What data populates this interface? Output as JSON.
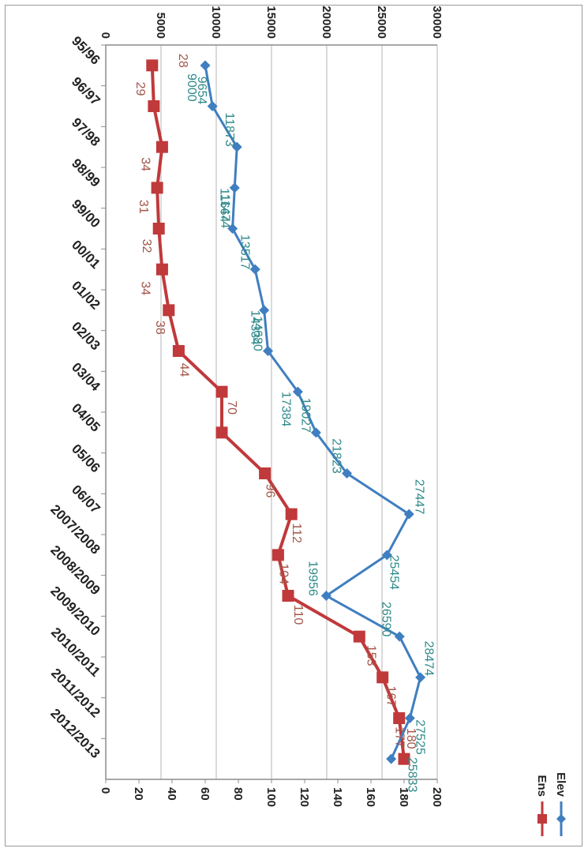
{
  "chart_data": {
    "type": "line",
    "title": "",
    "xlabel": "",
    "ylabel": "",
    "categories": [
      "95/96",
      "96/97",
      "97/98",
      "98/99",
      "99/00",
      "00/01",
      "01/02",
      "02/03",
      "03/04",
      "04/05",
      "05/06",
      "06/07",
      "2007/2008",
      "2008/2009",
      "2009/2010",
      "2010/2011",
      "2011/2012",
      "2012/2013"
    ],
    "primary_axis": {
      "min": 0,
      "max": 30000,
      "step": 5000,
      "tick_labels": [
        "0",
        "5000",
        "10000",
        "15000",
        "20000",
        "25000",
        "30000"
      ]
    },
    "secondary_axis": {
      "min": 0,
      "max": 200,
      "step": 20,
      "tick_labels": [
        "0",
        "20",
        "40",
        "60",
        "80",
        "100",
        "120",
        "140",
        "160",
        "180",
        "200"
      ]
    },
    "grid": "major gridlines on primary axis",
    "legend_position": "top-right",
    "series": [
      {
        "name": "Elev",
        "axis": "primary",
        "marker": "diamond",
        "color": "#3f7ec0",
        "label_color": "#2f8a8a",
        "values": [
          9000,
          9654,
          11873,
          11664,
          11474,
          13517,
          14334,
          14680,
          17384,
          19027,
          21823,
          27447,
          25454,
          19956,
          26590,
          28474,
          27525,
          25833
        ],
        "labels": [
          "9000",
          "9654",
          "11873",
          "11664",
          "11474",
          "13517",
          "14334",
          "14680",
          "17384",
          "19027",
          "21823",
          "27447",
          "25454",
          "19956",
          "26590",
          "28474",
          "27525",
          "25833"
        ]
      },
      {
        "name": "Ens",
        "axis": "secondary",
        "marker": "square",
        "color": "#c0393b",
        "label_color": "#a4564a",
        "values": [
          28,
          29,
          34,
          31,
          32,
          34,
          38,
          44,
          70,
          70,
          96,
          112,
          104,
          110,
          153,
          167,
          177,
          180
        ],
        "labels": [
          "28",
          "29",
          "34",
          "31",
          "32",
          "34",
          "38",
          "44",
          "70",
          "",
          "96",
          "112",
          "104",
          "110",
          "153",
          "167",
          "177",
          "180"
        ]
      }
    ]
  }
}
